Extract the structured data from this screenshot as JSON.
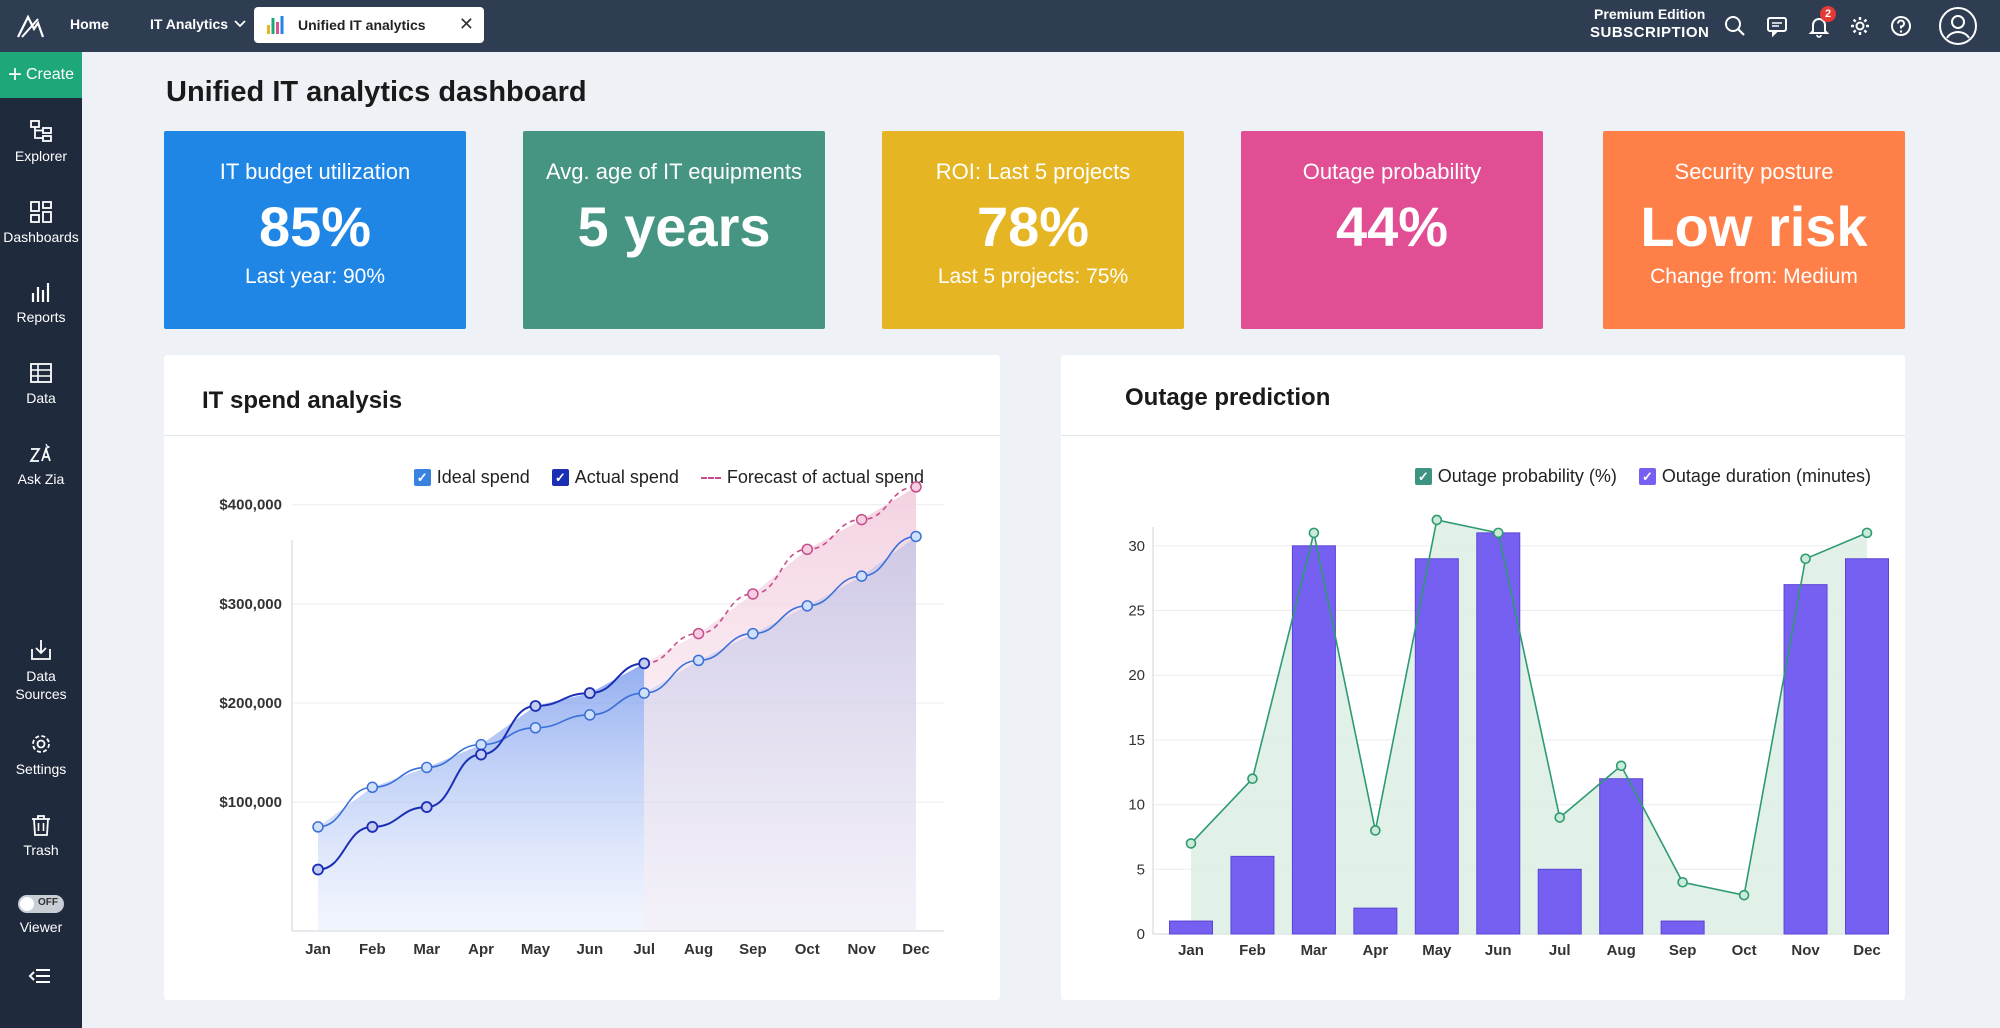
{
  "topbar": {
    "home": "Home",
    "it_analytics": "IT Analytics",
    "tab_label": "Unified IT analytics",
    "tab_close": "✕",
    "edition_line1": "Premium Edition",
    "edition_line2": "SUBSCRIPTION",
    "notification_count": "2"
  },
  "sidebar": {
    "create": "Create",
    "items": [
      {
        "label": "Explorer",
        "icon": "explorer-icon"
      },
      {
        "label": "Dashboards",
        "icon": "dashboards-icon"
      },
      {
        "label": "Reports",
        "icon": "reports-icon"
      },
      {
        "label": "Data",
        "icon": "data-icon"
      },
      {
        "label": "Ask Zia",
        "icon": "ask-zia-icon"
      },
      {
        "label": "Data Sources",
        "icon": "data-sources-icon"
      },
      {
        "label": "Settings",
        "icon": "settings-icon"
      },
      {
        "label": "Trash",
        "icon": "trash-icon"
      },
      {
        "label": "Viewer",
        "icon": "viewer-toggle"
      }
    ],
    "viewer_toggle_state": "OFF"
  },
  "page": {
    "title": "Unified IT analytics dashboard"
  },
  "kpis": [
    {
      "title": "IT budget utilization",
      "value": "85%",
      "sub": "Last year: 90%",
      "color": "#1f86e6"
    },
    {
      "title": "Avg. age of IT equipments",
      "value": "5 years",
      "sub": "",
      "color": "#469582"
    },
    {
      "title": "ROI: Last 5 projects",
      "value": "78%",
      "sub": "Last 5 projects: 75%",
      "color": "#e6b523"
    },
    {
      "title": "Outage probability",
      "value": "44%",
      "sub": "",
      "color": "#e14e94"
    },
    {
      "title": "Security posture",
      "value": "Low risk",
      "sub": "Change from: Medium",
      "color": "#fe7f48"
    }
  ],
  "panels": {
    "spend_title": "IT spend analysis",
    "outage_title": "Outage prediction"
  },
  "chart_data": [
    {
      "type": "line",
      "title": "IT spend analysis",
      "categories": [
        "Jan",
        "Feb",
        "Mar",
        "Apr",
        "May",
        "Jun",
        "Jul",
        "Aug",
        "Sep",
        "Oct",
        "Nov",
        "Dec"
      ],
      "y_ticks": [
        "$100,000",
        "$200,000",
        "$300,000",
        "$400,000"
      ],
      "ylim": [
        -30000,
        430000
      ],
      "legend_position": "top-right",
      "series": [
        {
          "name": "Ideal spend",
          "color": "#3a6fd8",
          "values": [
            75000,
            115000,
            135000,
            158000,
            175000,
            188000,
            210000,
            243000,
            270000,
            298000,
            328000,
            368000
          ]
        },
        {
          "name": "Actual spend",
          "color": "#1b2fb5",
          "values": [
            32000,
            75000,
            95000,
            148000,
            197000,
            210000,
            240000,
            null,
            null,
            null,
            null,
            null
          ]
        },
        {
          "name": "Forecast of actual spend",
          "color": "#c74d8c",
          "values": [
            null,
            null,
            null,
            null,
            null,
            null,
            240000,
            270000,
            310000,
            355000,
            385000,
            418000
          ]
        }
      ]
    },
    {
      "type": "bar",
      "title": "Outage prediction",
      "categories": [
        "Jan",
        "Feb",
        "Mar",
        "Apr",
        "May",
        "Jun",
        "Jul",
        "Aug",
        "Sep",
        "Oct",
        "Nov",
        "Dec"
      ],
      "y_ticks": [
        0,
        5,
        10,
        15,
        20,
        25,
        30
      ],
      "ylim": [
        0,
        33
      ],
      "legend_position": "top-right",
      "series": [
        {
          "name": "Outage probability (%)",
          "type": "area",
          "color": "#2e9a73",
          "values": [
            7,
            12,
            31,
            8,
            32,
            31,
            9,
            13,
            4,
            3,
            29,
            31
          ]
        },
        {
          "name": "Outage duration (minutes)",
          "type": "bar",
          "color": "#7560f2",
          "values": [
            1,
            6,
            30,
            2,
            29,
            31,
            5,
            12,
            1,
            0,
            27,
            29
          ]
        }
      ]
    }
  ]
}
